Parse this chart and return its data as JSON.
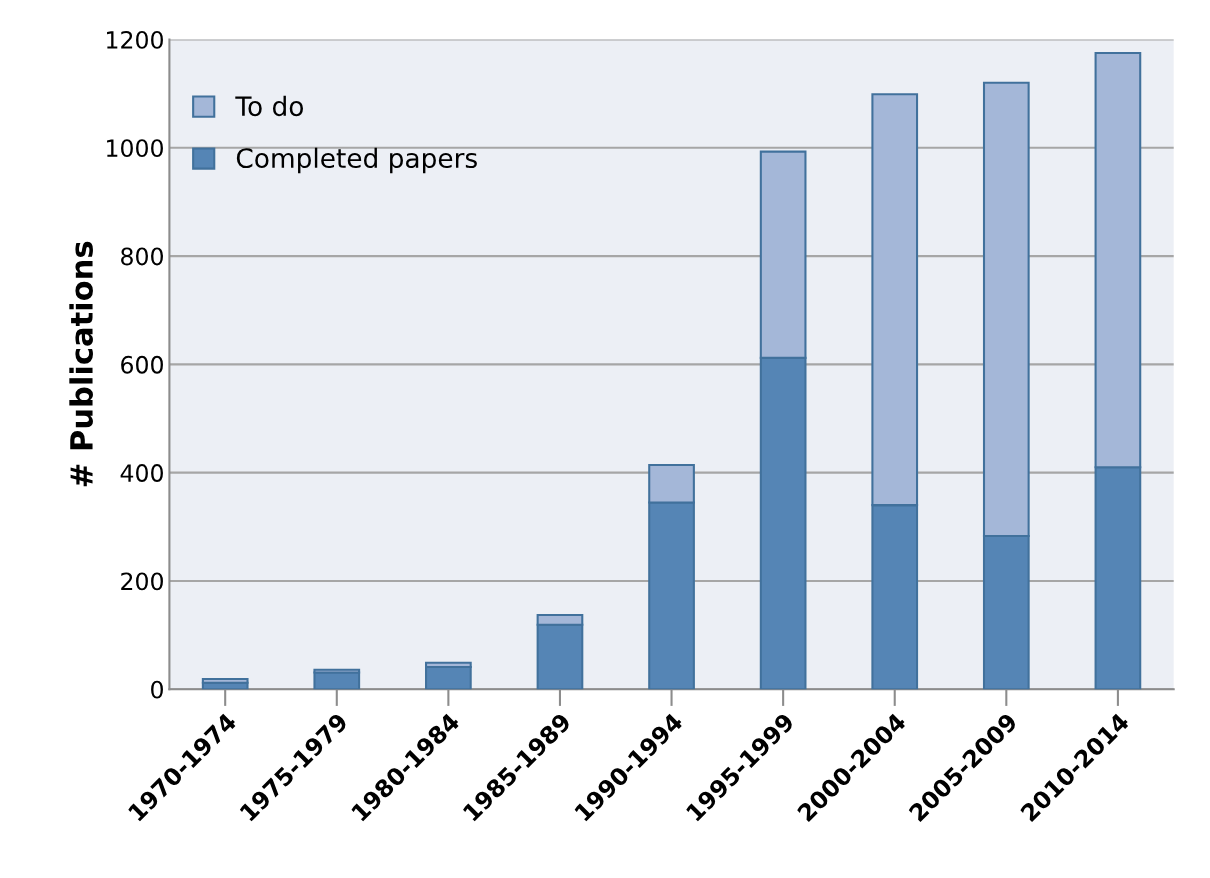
{
  "chart_data": {
    "type": "bar",
    "stacked": true,
    "ylabel": "# Publications",
    "categories": [
      "1970-1974",
      "1975-1979",
      "1980-1984",
      "1985-1989",
      "1990-1994",
      "1995-1999",
      "2000-2004",
      "2005-2009",
      "2010-2014"
    ],
    "series": [
      {
        "name": "Completed papers",
        "color": "#5585b5",
        "values": [
          12,
          31,
          41,
          119,
          345,
          612,
          340,
          283,
          410
        ]
      },
      {
        "name": "To do",
        "color": "#a4b7d8",
        "values": [
          7,
          5,
          8,
          18,
          69,
          381,
          759,
          837,
          765
        ]
      }
    ],
    "ylim": [
      0,
      1200
    ],
    "yticks": [
      0,
      200,
      400,
      600,
      800,
      1000,
      1200
    ],
    "grid": "y",
    "legend": "top left"
  }
}
